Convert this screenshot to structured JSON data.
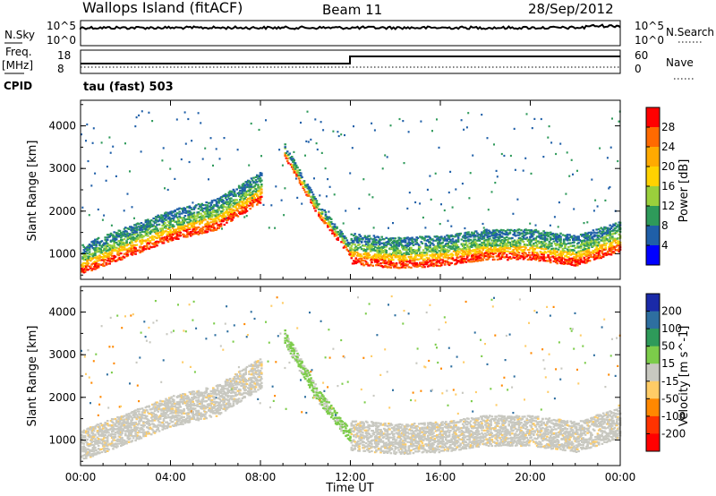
{
  "header": {
    "station": "Wallops Island (fitACF)",
    "beam": "Beam 11",
    "date": "28/Sep/2012"
  },
  "strips": {
    "nsky_label": "N.Sky",
    "nsky_ticks": [
      "10^5",
      "10^0"
    ],
    "nsearch_label": "N.Search",
    "nsearch_ticks": [
      "10^5",
      "10^0"
    ],
    "freq_label": "Freq.",
    "freq_unit": "[MHz]",
    "freq_ticks": [
      "18",
      "8"
    ],
    "nave_label": "Nave",
    "nave_ticks": [
      "60",
      "0"
    ],
    "cpid_label": "CPID",
    "cpid_value": "tau (fast) 503"
  },
  "chart_data": [
    {
      "type": "heatmap",
      "name": "power",
      "ylabel": "Slant Range [km]",
      "ylim": [
        400,
        4600
      ],
      "y_ticks": [
        1000,
        2000,
        3000,
        4000
      ],
      "colorbar_label": "Power [dB]",
      "colorbar_ticks": [
        "28",
        "24",
        "20",
        "16",
        "12",
        "8",
        "4"
      ],
      "colorbar_colors": [
        "#ff0000",
        "#ff6a00",
        "#ffaa00",
        "#ffd200",
        "#9ad03c",
        "#2e9a5a",
        "#1f5fa8",
        "#0000ff"
      ],
      "features": [
        {
          "label": "band",
          "x_hours": [
            0,
            2,
            4,
            6,
            8
          ],
          "range_km": [
            900,
            1300,
            1700,
            1950,
            2600
          ]
        },
        {
          "label": "band",
          "x_hours": [
            9,
            10.5,
            12
          ],
          "range_km": [
            3500,
            2100,
            1100
          ]
        },
        {
          "label": "band",
          "x_hours": [
            12,
            14,
            16,
            18,
            20,
            22,
            24
          ],
          "range_km": [
            1150,
            1050,
            1100,
            1250,
            1250,
            1100,
            1450
          ]
        }
      ]
    },
    {
      "type": "heatmap",
      "name": "velocity",
      "ylabel": "Slant Range [km]",
      "ylim": [
        400,
        4600
      ],
      "y_ticks": [
        1000,
        2000,
        3000,
        4000
      ],
      "colorbar_label": "Velocity [m s^-1]",
      "colorbar_ticks": [
        "200",
        "100",
        "50",
        "15",
        "-15",
        "-50",
        "-100",
        "-200"
      ],
      "colorbar_colors": [
        "#1a2aa8",
        "#2e6fa0",
        "#2e9a5a",
        "#7ccc4a",
        "#c8c8c0",
        "#ffcc66",
        "#ff8800",
        "#ff3300",
        "#ff0000"
      ],
      "x_ticks": [
        "00:00",
        "04:00",
        "08:00",
        "12:00",
        "16:00",
        "20:00",
        "00:00"
      ],
      "xlabel": "Time UT"
    }
  ]
}
